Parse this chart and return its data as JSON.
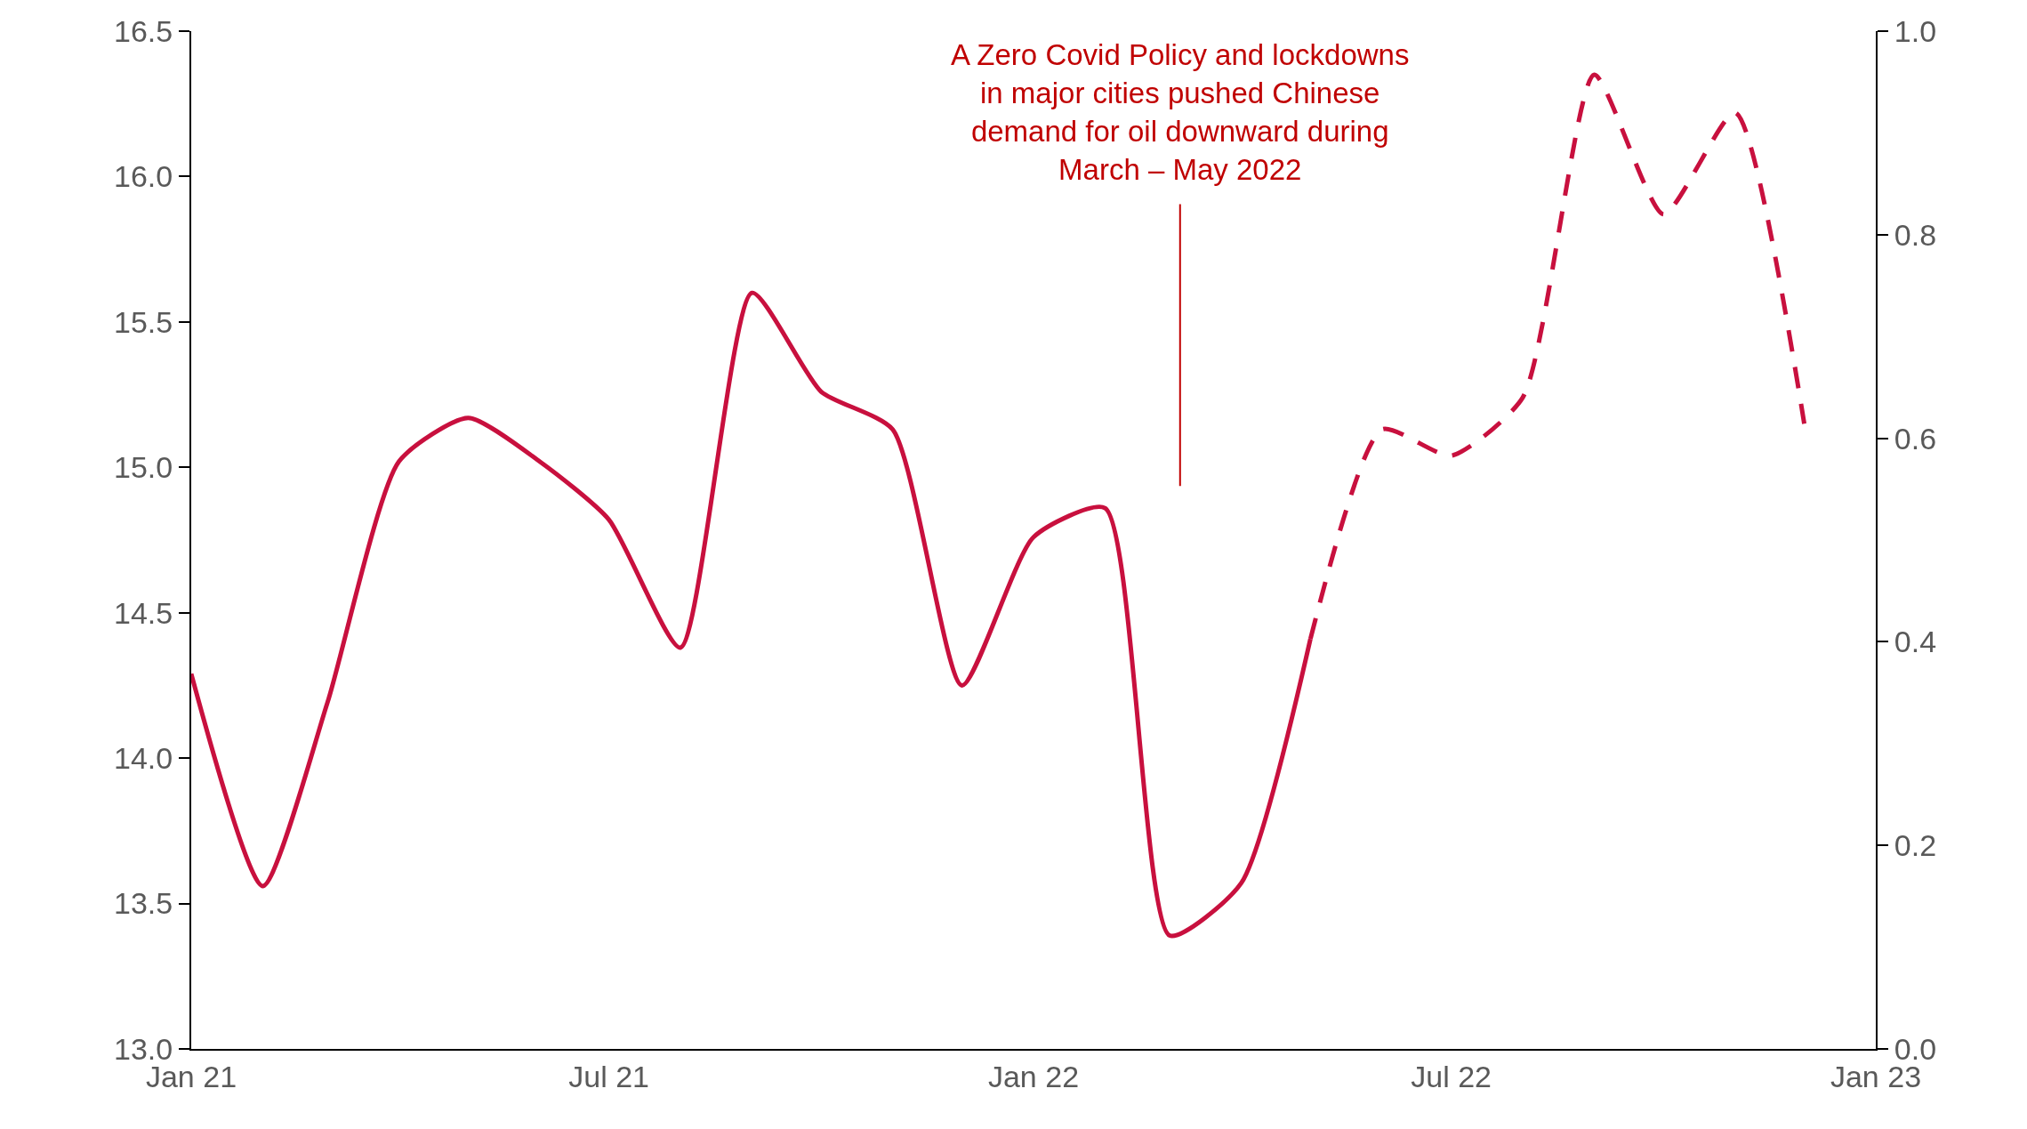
{
  "chart_data": {
    "type": "line",
    "x": [
      "2021-01",
      "2021-02",
      "2021-03",
      "2021-04",
      "2021-05",
      "2021-06",
      "2021-07",
      "2021-08",
      "2021-09",
      "2021-10",
      "2021-11",
      "2021-12",
      "2022-01",
      "2022-02",
      "2022-03",
      "2022-04",
      "2022-05"
    ],
    "series": [
      {
        "color": "#c8103e",
        "line_style": "solid",
        "values": [
          14.29,
          13.56,
          14.19,
          15.02,
          15.17,
          15.02,
          14.82,
          14.38,
          15.6,
          15.26,
          15.13,
          14.25,
          14.76,
          14.86,
          13.39,
          13.57,
          14.41
        ]
      },
      {
        "color": "#c8103e",
        "line_style": "dashed",
        "x": [
          "2022-05",
          "2022-06",
          "2022-07",
          "2022-08",
          "2022-09",
          "2022-10",
          "2022-11",
          "2022-12"
        ],
        "values": [
          14.41,
          15.13,
          15.04,
          15.24,
          16.35,
          15.87,
          16.22,
          15.15
        ]
      }
    ],
    "xlim": [
      "2021-01",
      "2023-01"
    ],
    "xticks": [
      {
        "value": "2021-01",
        "label": "Jan 21"
      },
      {
        "value": "2021-07",
        "label": "Jul 21"
      },
      {
        "value": "2022-01",
        "label": "Jan 22"
      },
      {
        "value": "2022-07",
        "label": "Jul 22"
      },
      {
        "value": "2023-01",
        "label": "Jan 23"
      }
    ],
    "ylim": [
      13.0,
      16.5
    ],
    "yticks": [
      {
        "value": 13.0,
        "label": "13.0"
      },
      {
        "value": 13.5,
        "label": "13.5"
      },
      {
        "value": 14.0,
        "label": "14.0"
      },
      {
        "value": 14.5,
        "label": "14.5"
      },
      {
        "value": 15.0,
        "label": "15.0"
      },
      {
        "value": 15.5,
        "label": "15.5"
      },
      {
        "value": 16.0,
        "label": "16.0"
      },
      {
        "value": 16.5,
        "label": "16.5"
      }
    ],
    "y2lim": [
      0.0,
      1.0
    ],
    "y2ticks": [
      {
        "value": 0.0,
        "label": "0.0"
      },
      {
        "value": 0.2,
        "label": "0.2"
      },
      {
        "value": 0.4,
        "label": "0.4"
      },
      {
        "value": 0.6,
        "label": "0.6"
      },
      {
        "value": 0.8,
        "label": "0.8"
      },
      {
        "value": 1.0,
        "label": "1.0"
      }
    ],
    "annotations": [
      "A Zero Covid Policy and lockdowns\nin major cities pushed Chinese\ndemand for oil downward during\nMarch – May 2022"
    ],
    "marker": "none"
  }
}
